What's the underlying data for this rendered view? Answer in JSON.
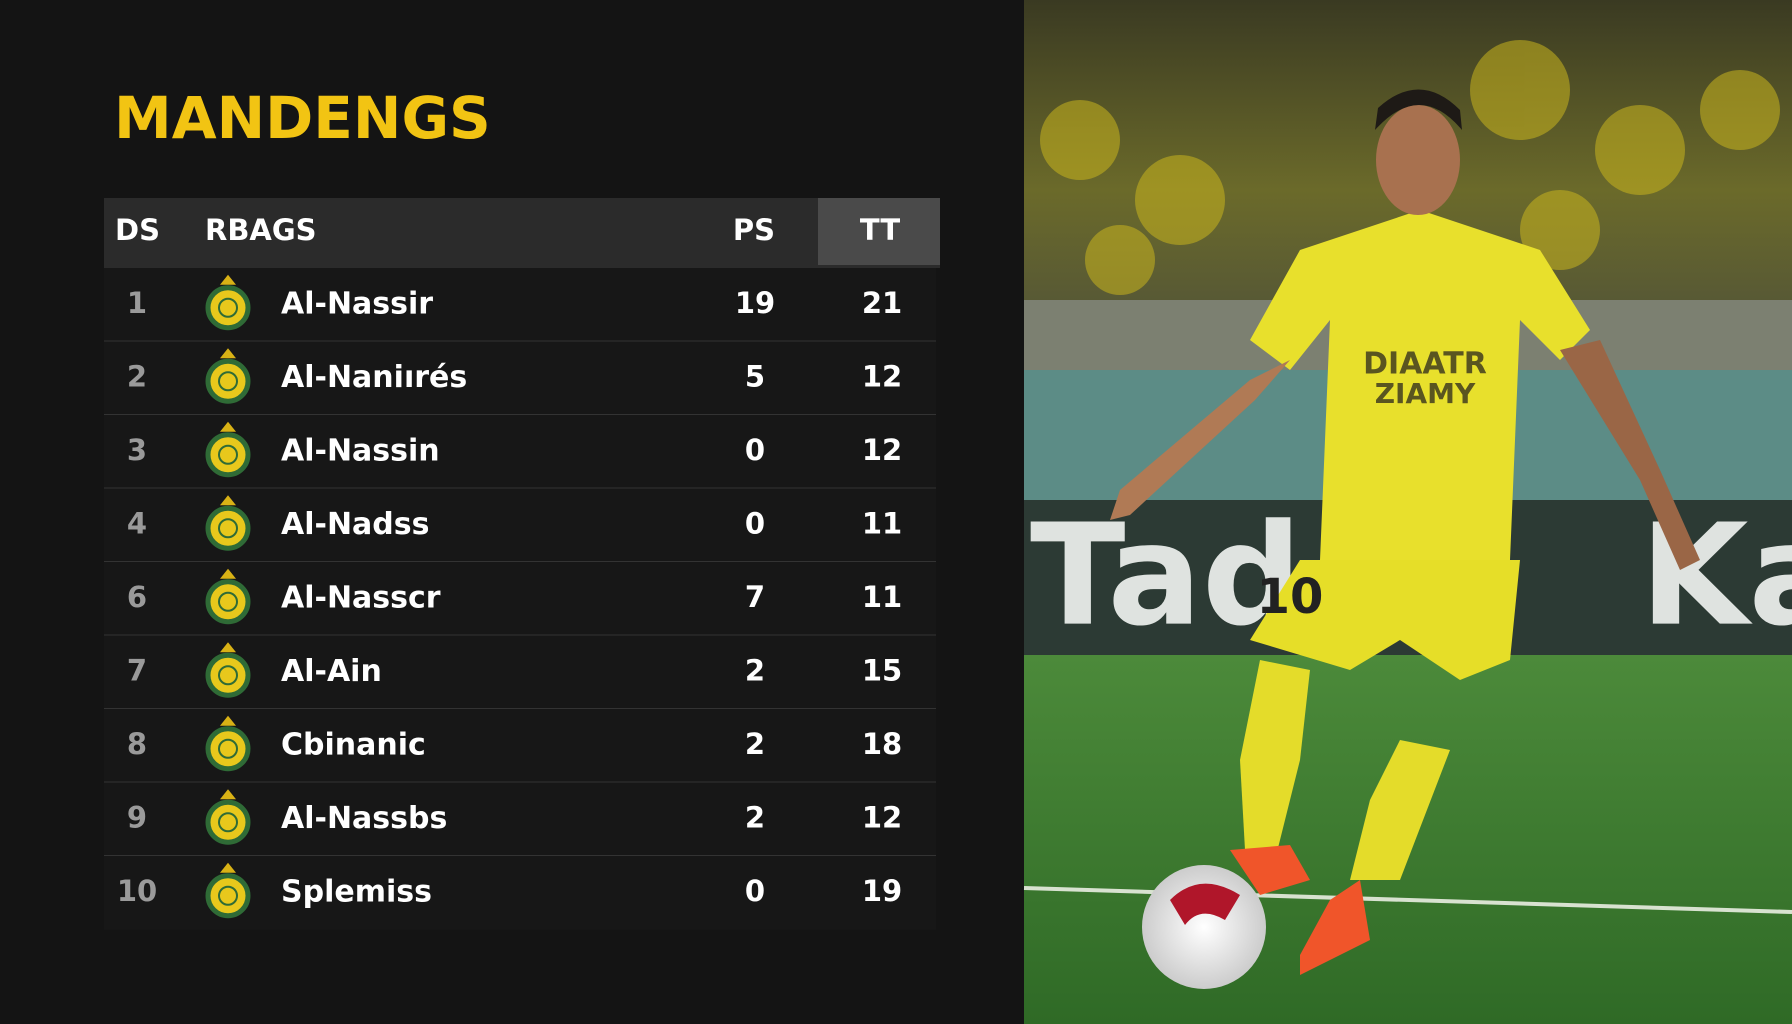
{
  "header": {
    "title": "MANDENGS"
  },
  "table": {
    "columns": [
      "DS",
      "RBAGS",
      "PS",
      "TT"
    ],
    "rows": [
      [
        1,
        "Al-Nassir",
        19,
        21
      ],
      [
        2,
        "Al-Naniırés",
        5,
        12
      ],
      [
        3,
        "Al-Nassin",
        0,
        12
      ],
      [
        4,
        "Al-Nadss",
        0,
        11
      ],
      [
        6,
        "Al-Nasscr",
        7,
        11
      ],
      [
        7,
        "Al-Ain",
        2,
        15
      ],
      [
        8,
        "Cbinanic",
        2,
        18
      ],
      [
        9,
        "Al-Nassbs",
        2,
        12
      ],
      [
        10,
        "Splemiss",
        0,
        19
      ]
    ]
  },
  "photo": {
    "board_texts": [
      "Tad",
      "Ka"
    ],
    "shirt_texts": [
      "DIAATR",
      "ZIAMY"
    ],
    "shirt_number": "10"
  }
}
